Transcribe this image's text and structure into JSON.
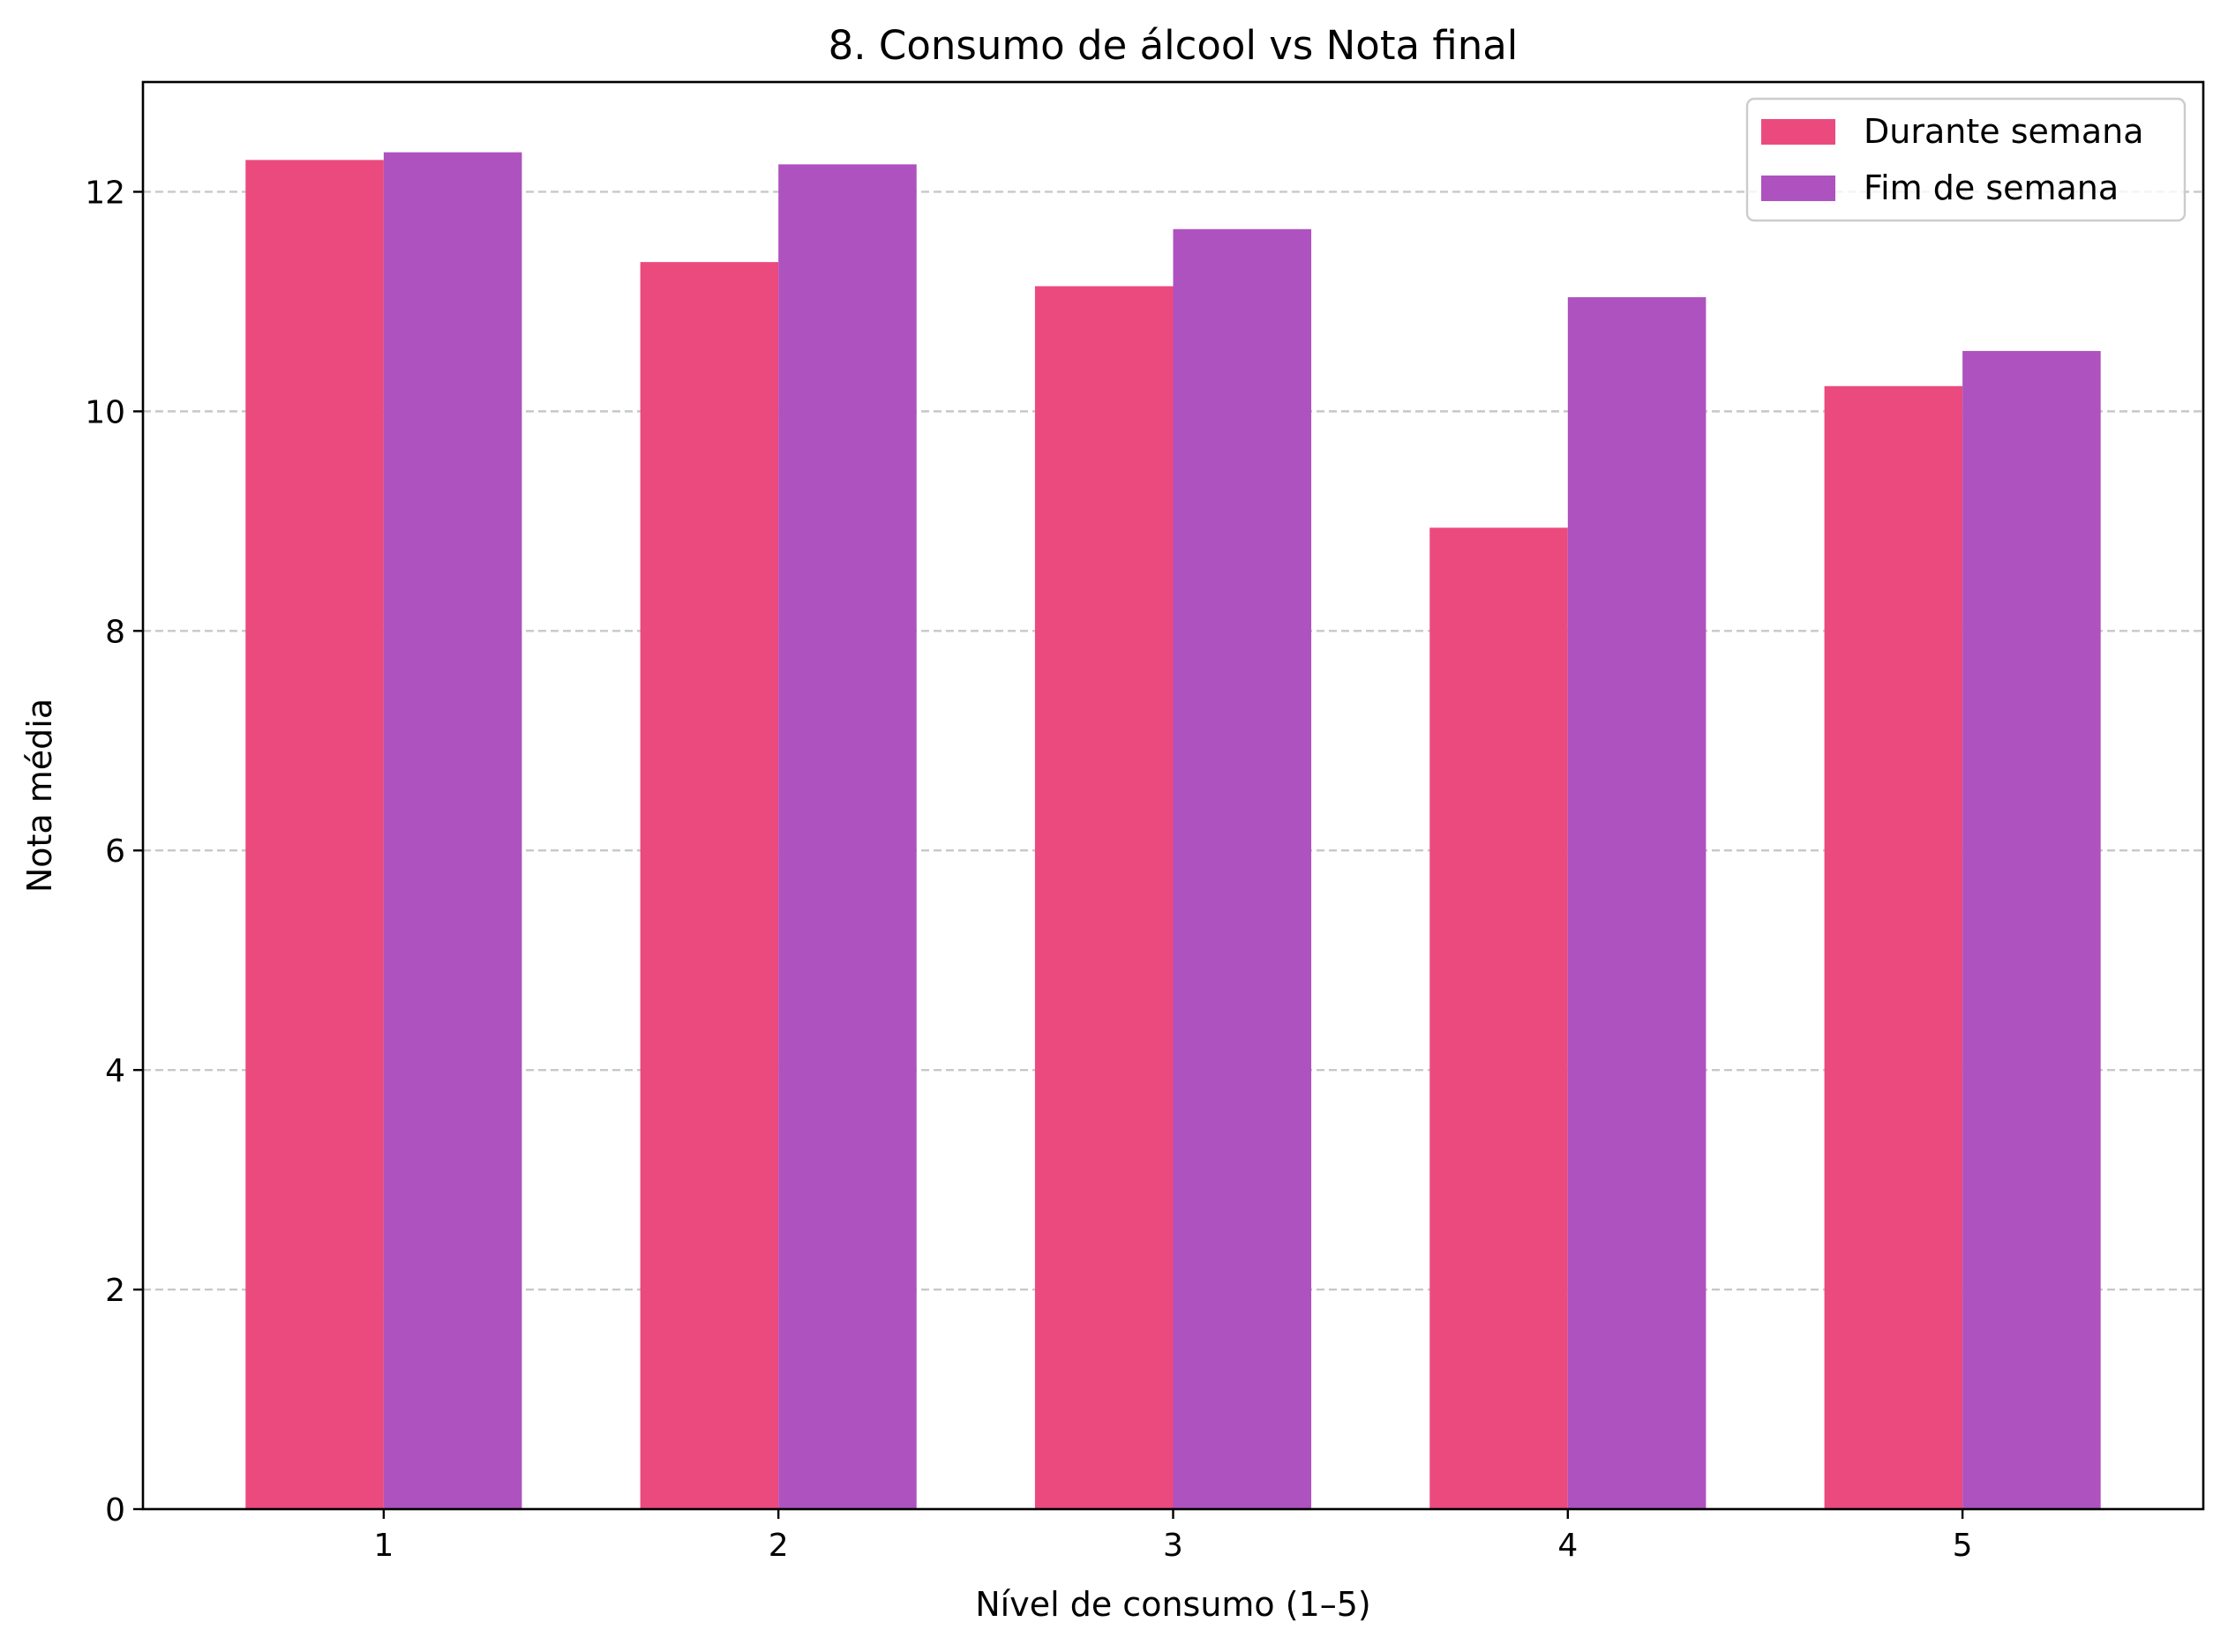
{
  "chart_data": {
    "type": "bar",
    "title": "8. Consumo de álcool vs Nota final",
    "xlabel": "Nível de consumo (1–5)",
    "ylabel": "Nota média",
    "categories": [
      "1",
      "2",
      "3",
      "4",
      "5"
    ],
    "series": [
      {
        "name": "Durante semana",
        "color": "#eb4a7f",
        "values": [
          12.29,
          11.36,
          11.14,
          8.94,
          10.23
        ]
      },
      {
        "name": "Fim de semana",
        "color": "#ae52bf",
        "values": [
          12.36,
          12.25,
          11.66,
          11.04,
          10.55
        ]
      }
    ],
    "ylim": [
      0,
      13
    ],
    "yticks": [
      0,
      2,
      4,
      6,
      8,
      10,
      12
    ],
    "grid": "y-dashed",
    "legend_position": "top-right"
  }
}
